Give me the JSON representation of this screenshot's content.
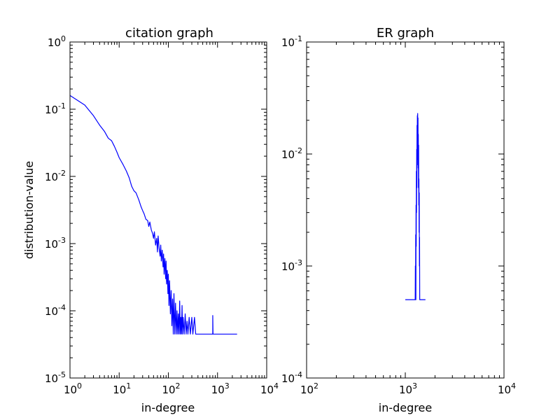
{
  "chart_data": [
    {
      "type": "line",
      "title": "citation graph",
      "xlabel": "in-degree",
      "ylabel": "distribution-value",
      "xscale": "log",
      "yscale": "log",
      "xlim": [
        1,
        10000
      ],
      "ylim": [
        1e-05,
        1
      ],
      "x_ticks": [
        {
          "base": "10",
          "exp": "0"
        },
        {
          "base": "10",
          "exp": "1"
        },
        {
          "base": "10",
          "exp": "2"
        },
        {
          "base": "10",
          "exp": "3"
        },
        {
          "base": "10",
          "exp": "4"
        }
      ],
      "y_ticks": [
        {
          "base": "10",
          "exp": "-5"
        },
        {
          "base": "10",
          "exp": "-4"
        },
        {
          "base": "10",
          "exp": "-3"
        },
        {
          "base": "10",
          "exp": "-2"
        },
        {
          "base": "10",
          "exp": "-1"
        },
        {
          "base": "10",
          "exp": "0"
        }
      ],
      "color": "#0000ff",
      "series": [
        {
          "name": "citation",
          "points": [
            [
              1,
              0.16
            ],
            [
              2,
              0.115
            ],
            [
              3,
              0.08
            ],
            [
              4,
              0.058
            ],
            [
              5,
              0.047
            ],
            [
              6,
              0.037
            ],
            [
              7,
              0.034
            ],
            [
              8,
              0.028
            ],
            [
              9,
              0.023
            ],
            [
              10,
              0.019
            ],
            [
              12,
              0.015
            ],
            [
              14,
              0.012
            ],
            [
              16,
              0.0095
            ],
            [
              18,
              0.0071
            ],
            [
              20,
              0.0061
            ],
            [
              22,
              0.0057
            ],
            [
              25,
              0.0045
            ],
            [
              28,
              0.0035
            ],
            [
              30,
              0.0031
            ],
            [
              32,
              0.0028
            ],
            [
              35,
              0.0023
            ],
            [
              38,
              0.0022
            ],
            [
              40,
              0.0018
            ],
            [
              42,
              0.0021
            ],
            [
              45,
              0.0016
            ],
            [
              48,
              0.0014
            ],
            [
              50,
              0.0012
            ],
            [
              52,
              0.0015
            ],
            [
              55,
              0.00095
            ],
            [
              58,
              0.0012
            ],
            [
              60,
              0.00075
            ],
            [
              62,
              0.0013
            ],
            [
              65,
              0.00085
            ],
            [
              68,
              0.00065
            ],
            [
              70,
              0.00095
            ],
            [
              72,
              0.00055
            ],
            [
              75,
              0.0008
            ],
            [
              78,
              0.00045
            ],
            [
              80,
              0.0007
            ],
            [
              82,
              0.00035
            ],
            [
              85,
              0.0006
            ],
            [
              88,
              0.0003
            ],
            [
              90,
              0.00055
            ],
            [
              92,
              0.00025
            ],
            [
              95,
              0.0004
            ],
            [
              98,
              0.00018
            ],
            [
              100,
              0.00035
            ],
            [
              103,
              0.00012
            ],
            [
              106,
              0.00028
            ],
            [
              110,
              9e-05
            ],
            [
              114,
              0.0002
            ],
            [
              118,
              6e-05
            ],
            [
              122,
              0.00015
            ],
            [
              126,
              4.5e-05
            ],
            [
              130,
              0.00018
            ],
            [
              135,
              4.5e-05
            ],
            [
              140,
              0.00013
            ],
            [
              145,
              4.5e-05
            ],
            [
              150,
              0.0001
            ],
            [
              155,
              4.5e-05
            ],
            [
              160,
              9e-05
            ],
            [
              165,
              4.5e-05
            ],
            [
              170,
              0.00014
            ],
            [
              175,
              4.5e-05
            ],
            [
              180,
              8e-05
            ],
            [
              185,
              4.5e-05
            ],
            [
              190,
              0.00012
            ],
            [
              195,
              4.5e-05
            ],
            [
              200,
              8e-05
            ],
            [
              210,
              4.5e-05
            ],
            [
              220,
              9e-05
            ],
            [
              230,
              4.5e-05
            ],
            [
              240,
              7e-05
            ],
            [
              250,
              4.5e-05
            ],
            [
              265,
              8e-05
            ],
            [
              280,
              4.5e-05
            ],
            [
              300,
              8e-05
            ],
            [
              315,
              4.5e-05
            ],
            [
              340,
              8e-05
            ],
            [
              360,
              4.5e-05
            ],
            [
              400,
              4.5e-05
            ],
            [
              600,
              4.5e-05
            ],
            [
              800,
              4.5e-05
            ],
            [
              800,
              8.5e-05
            ],
            [
              810,
              4.5e-05
            ],
            [
              1500,
              4.5e-05
            ],
            [
              2500,
              4.5e-05
            ]
          ]
        }
      ]
    },
    {
      "type": "line",
      "title": "ER graph",
      "xlabel": "in-degree",
      "ylabel": "",
      "xscale": "log",
      "yscale": "log",
      "xlim": [
        100,
        10000
      ],
      "ylim": [
        0.0001,
        0.1
      ],
      "x_ticks": [
        {
          "base": "10",
          "exp": "2"
        },
        {
          "base": "10",
          "exp": "3"
        },
        {
          "base": "10",
          "exp": "4"
        }
      ],
      "y_ticks": [
        {
          "base": "10",
          "exp": "-4"
        },
        {
          "base": "10",
          "exp": "-3"
        },
        {
          "base": "10",
          "exp": "-2"
        },
        {
          "base": "10",
          "exp": "-1"
        }
      ],
      "color": "#0000ff",
      "series": [
        {
          "name": "ER",
          "points": [
            [
              1000,
              0.0005
            ],
            [
              1240,
              0.0005
            ],
            [
              1250,
              0.0005
            ],
            [
              1260,
              0.0005
            ],
            [
              1265,
              0.001
            ],
            [
              1270,
              0.0005
            ],
            [
              1275,
              0.0019
            ],
            [
              1280,
              0.0005
            ],
            [
              1285,
              0.0035
            ],
            [
              1290,
              0.0015
            ],
            [
              1295,
              0.007
            ],
            [
              1300,
              0.003
            ],
            [
              1305,
              0.011
            ],
            [
              1310,
              0.005
            ],
            [
              1315,
              0.018
            ],
            [
              1320,
              0.008
            ],
            [
              1325,
              0.022
            ],
            [
              1330,
              0.013
            ],
            [
              1335,
              0.023
            ],
            [
              1340,
              0.009
            ],
            [
              1345,
              0.021
            ],
            [
              1350,
              0.0075
            ],
            [
              1355,
              0.015
            ],
            [
              1360,
              0.005
            ],
            [
              1365,
              0.012
            ],
            [
              1370,
              0.0035
            ],
            [
              1375,
              0.006
            ],
            [
              1380,
              0.002
            ],
            [
              1385,
              0.0045
            ],
            [
              1390,
              0.001
            ],
            [
              1395,
              0.0018
            ],
            [
              1400,
              0.0005
            ],
            [
              1410,
              0.0005
            ],
            [
              1600,
              0.0005
            ]
          ]
        }
      ]
    }
  ]
}
